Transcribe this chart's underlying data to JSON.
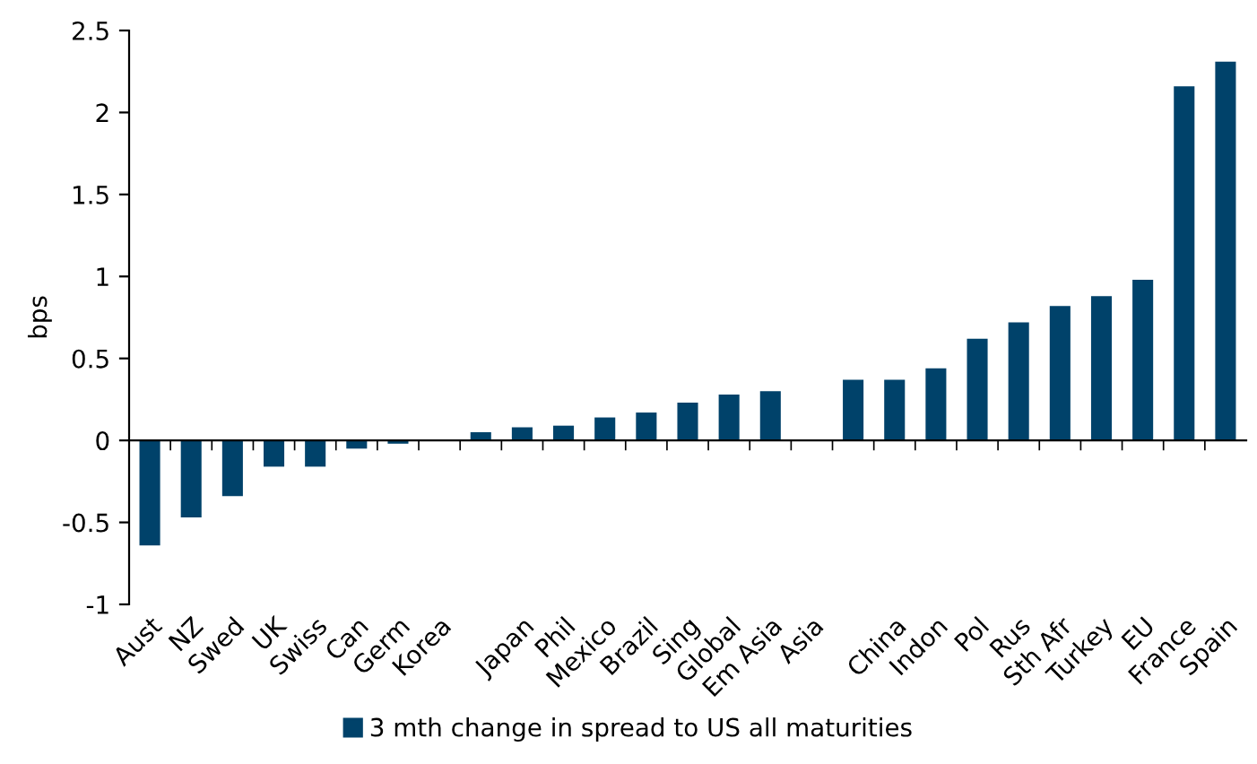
{
  "chart_data": {
    "type": "bar",
    "ylabel": "bps",
    "categories": [
      "Aust",
      "NZ",
      "Swed",
      "UK",
      "Swiss",
      "Can",
      "Germ",
      "Korea",
      null,
      "Japan",
      "Phil",
      "Mexico",
      "Brazil",
      "Sing",
      "Global",
      "Em Asia",
      "Asia",
      null,
      "China",
      "Indon",
      "Pol",
      "Rus",
      "Sth Afr",
      "Turkey",
      "EU",
      "France",
      "Spain"
    ],
    "series": [
      {
        "name": "3 mth change in spread to US all maturities",
        "color": "#00426a",
        "values": [
          -0.64,
          -0.47,
          -0.34,
          -0.16,
          -0.16,
          -0.05,
          -0.02,
          null,
          0.05,
          0.08,
          0.09,
          0.14,
          0.17,
          0.23,
          0.28,
          0.3,
          null,
          0.37,
          0.37,
          0.44,
          0.62,
          0.72,
          0.82,
          0.88,
          0.98,
          2.16,
          2.31
        ]
      }
    ],
    "ylim": [
      -1,
      2.5
    ],
    "yticks": [
      -1,
      -0.5,
      0,
      0.5,
      1,
      1.5,
      2,
      2.5
    ],
    "legend": "bottom"
  }
}
